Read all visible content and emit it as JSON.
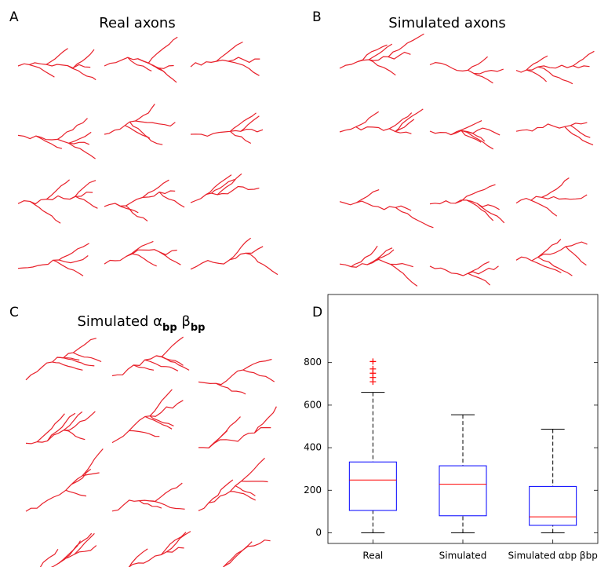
{
  "figure": {
    "panels": [
      {
        "letter": "A",
        "title_parts": [
          {
            "text": "Real axons"
          }
        ]
      },
      {
        "letter": "B",
        "title_parts": [
          {
            "text": "Simulated axons"
          }
        ]
      },
      {
        "letter": "C",
        "title_parts": [
          {
            "text": "Simulated α"
          },
          {
            "text": "bp",
            "sub": true
          },
          {
            "text": " β"
          },
          {
            "text": "bp",
            "sub": true
          }
        ]
      },
      {
        "letter": "D"
      }
    ]
  },
  "chart_data": {
    "type": "box",
    "categories": [
      "Real",
      "Simulated",
      "Simulated αbp βbp"
    ],
    "boxes": [
      {
        "min": 0,
        "q1": 105,
        "median": 248,
        "q3": 333,
        "max": 660,
        "outliers": [
          710,
          730,
          750,
          770,
          805
        ]
      },
      {
        "min": 0,
        "q1": 80,
        "median": 228,
        "q3": 315,
        "max": 555,
        "outliers": []
      },
      {
        "min": 0,
        "q1": 35,
        "median": 75,
        "q3": 218,
        "max": 487,
        "outliers": []
      }
    ],
    "ylim": [
      -50,
      1120
    ],
    "yticks": [
      0,
      200,
      400,
      600,
      800
    ],
    "box_color": "#0000ff",
    "median_color": "#ff0000",
    "whisker_color": "#000000",
    "outlier_color": "#ff0000"
  }
}
